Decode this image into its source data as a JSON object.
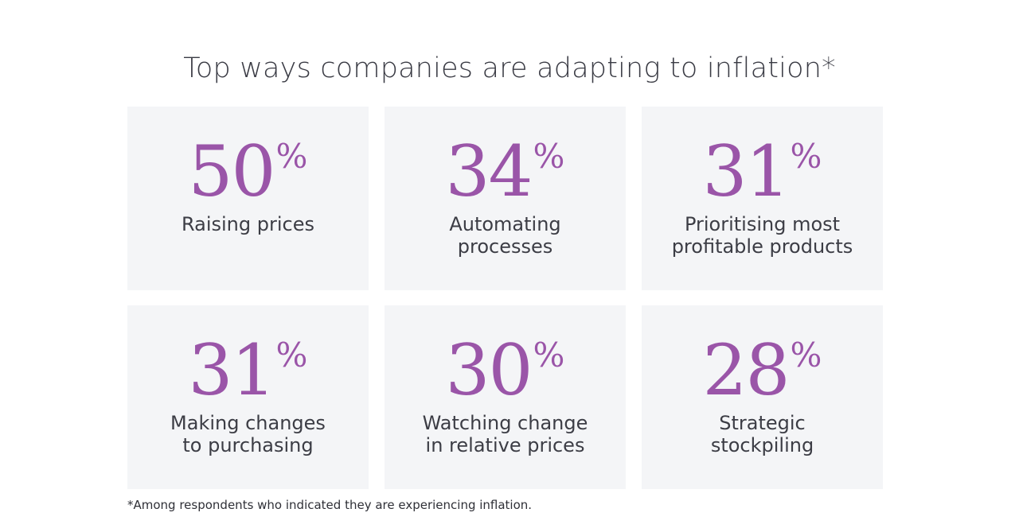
{
  "title": "Top ways companies are adapting to inflation*",
  "colors": {
    "accent": "#9a55a8",
    "card_background": "#f4f5f7",
    "text": "#3c3d45"
  },
  "stats": [
    {
      "value": "50",
      "unit": "%",
      "label": "Raising prices"
    },
    {
      "value": "34",
      "unit": "%",
      "label": "Automating\nprocesses"
    },
    {
      "value": "31",
      "unit": "%",
      "label": "Prioritising most\nprofitable products"
    },
    {
      "value": "31",
      "unit": "%",
      "label": "Making changes\nto purchasing"
    },
    {
      "value": "30",
      "unit": "%",
      "label": "Watching change\nin relative prices"
    },
    {
      "value": "28",
      "unit": "%",
      "label": "Strategic\nstockpiling"
    }
  ],
  "footnote": "*Among respondents who indicated they are experiencing inflation."
}
